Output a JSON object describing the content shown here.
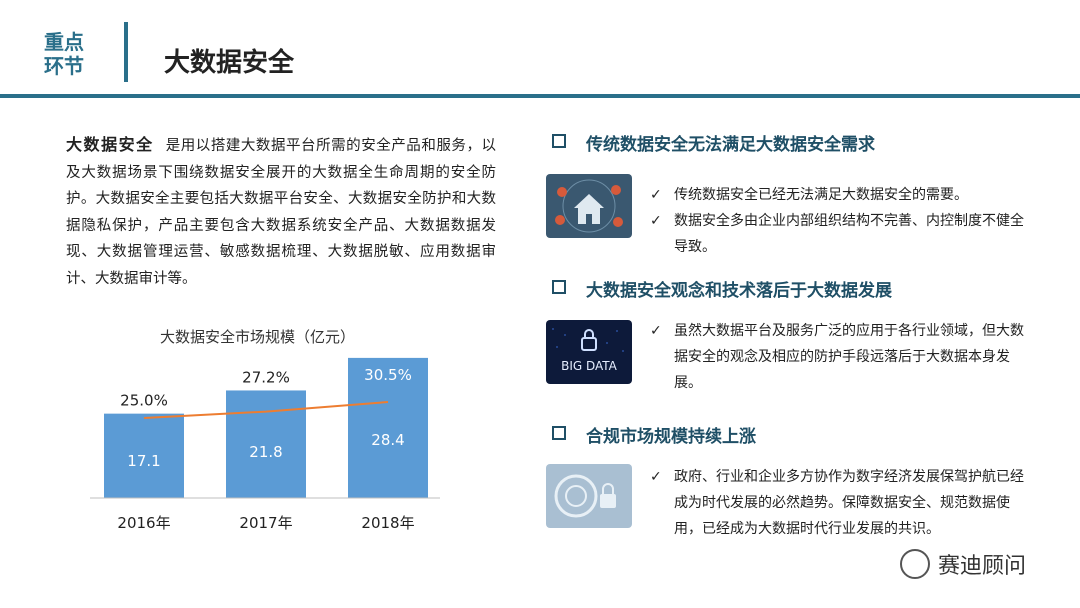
{
  "header": {
    "tag_line1": "重点",
    "tag_line2": "环节",
    "title": "大数据安全"
  },
  "intro": {
    "lead": "大数据安全",
    "body": "是用以搭建大数据平台所需的安全产品和服务，以及大数据场景下围绕数据安全展开的大数据全生命周期的安全防护。大数据安全主要包括大数据平台安全、大数据安全防护和大数据隐私保护，产品主要包含大数据系统安全产品、大数据数据发现、大数据管理运营、敏感数据梳理、大数据脱敏、应用数据审计、大数据审计等。"
  },
  "chart_data": {
    "type": "bar",
    "title": "大数据安全市场规模（亿元）",
    "categories": [
      "2016年",
      "2017年",
      "2018年"
    ],
    "values": [
      17.1,
      21.8,
      28.4
    ],
    "growth_series": {
      "values": [
        "25.0%",
        "27.2%",
        "30.5%"
      ],
      "numeric": [
        25.0,
        27.2,
        30.5
      ]
    },
    "bar_color": "#5b9bd5",
    "line_color": "#ed7d31"
  },
  "sections": [
    {
      "heading": "传统数据安全无法满足大数据安全需求",
      "image_icon": "smart-home-security-image",
      "bullets": [
        "传统数据安全已经无法满足大数据安全的需要。",
        "数据安全多由企业内部组织结构不完善、内控制度不健全导致。"
      ]
    },
    {
      "heading": "大数据安全观念和技术落后于大数据发展",
      "image_icon": "big-data-lock-image",
      "image_text": "BIG DATA",
      "bullets": [
        "虽然大数据平台及服务广泛的应用于各行业领域，但大数据安全的观念及相应的防护手段远落后于大数据本身发展。"
      ]
    },
    {
      "heading": "合规市场规模持续上涨",
      "image_icon": "digital-lock-image",
      "bullets": [
        "政府、行业和企业多方协作为数字经济发展保驾护航已经成为时代发展的必然趋势。保障数据安全、规范数据使用，已经成为大数据时代行业发展的共识。"
      ]
    }
  ],
  "watermark": "赛迪顾问"
}
